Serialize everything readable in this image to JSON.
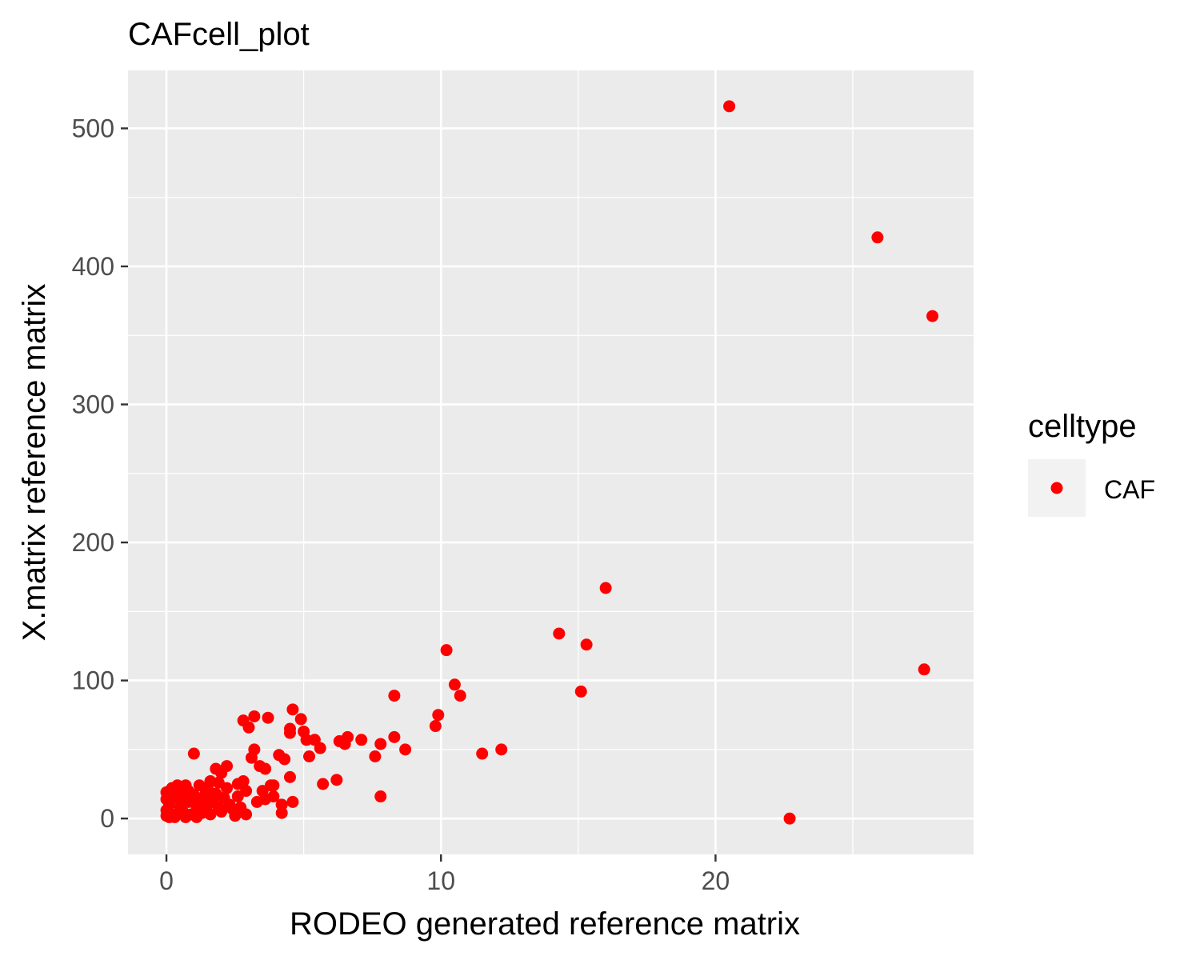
{
  "chart_data": {
    "type": "scatter",
    "title": "CAFcell_plot",
    "xlabel": "RODEO generated reference matrix",
    "ylabel": "X.matrix reference matrix",
    "xlim": [
      -1.4,
      29.4
    ],
    "ylim": [
      -26,
      542
    ],
    "x_ticks": [
      0,
      10,
      20
    ],
    "x_tick_labels": [
      "0",
      "10",
      "20"
    ],
    "y_ticks": [
      0,
      100,
      200,
      300,
      400,
      500
    ],
    "y_tick_labels": [
      "0",
      "100",
      "200",
      "300",
      "400",
      "500"
    ],
    "grid": true,
    "legend": {
      "title": "celltype",
      "position": "right",
      "entries": [
        "CAF"
      ]
    },
    "colors": {
      "panel": "#ebebeb",
      "grid": "#ffffff",
      "point": "#ff0000",
      "legend_key": "#f2f2f2"
    },
    "series": [
      {
        "name": "CAF",
        "color": "#ff0000",
        "points": [
          [
            20.5,
            516
          ],
          [
            25.9,
            421
          ],
          [
            27.9,
            364
          ],
          [
            16.0,
            167
          ],
          [
            14.3,
            134
          ],
          [
            15.3,
            126
          ],
          [
            15.1,
            92
          ],
          [
            27.6,
            108
          ],
          [
            22.7,
            0
          ],
          [
            10.2,
            122
          ],
          [
            10.5,
            97
          ],
          [
            10.7,
            89
          ],
          [
            9.9,
            75
          ],
          [
            9.8,
            67
          ],
          [
            8.3,
            89
          ],
          [
            8.3,
            59
          ],
          [
            8.7,
            50
          ],
          [
            7.8,
            54
          ],
          [
            7.6,
            45
          ],
          [
            7.8,
            16
          ],
          [
            11.5,
            47
          ],
          [
            12.2,
            50
          ],
          [
            7.1,
            57
          ],
          [
            6.6,
            59
          ],
          [
            6.5,
            54
          ],
          [
            6.3,
            56
          ],
          [
            6.2,
            28
          ],
          [
            5.7,
            25
          ],
          [
            5.6,
            51
          ],
          [
            5.4,
            57
          ],
          [
            5.2,
            45
          ],
          [
            5.0,
            63
          ],
          [
            5.1,
            57
          ],
          [
            4.9,
            72
          ],
          [
            4.6,
            79
          ],
          [
            4.5,
            65
          ],
          [
            4.5,
            62
          ],
          [
            4.5,
            30
          ],
          [
            4.6,
            12
          ],
          [
            4.3,
            43
          ],
          [
            4.2,
            10
          ],
          [
            4.2,
            4
          ],
          [
            4.1,
            46
          ],
          [
            3.9,
            24
          ],
          [
            3.8,
            24
          ],
          [
            3.7,
            73
          ],
          [
            3.6,
            36
          ],
          [
            3.4,
            38
          ],
          [
            3.6,
            14
          ],
          [
            3.2,
            74
          ],
          [
            3.2,
            50
          ],
          [
            3.1,
            44
          ],
          [
            3.0,
            66
          ],
          [
            2.8,
            71
          ],
          [
            2.8,
            27
          ],
          [
            2.9,
            20
          ],
          [
            2.6,
            25
          ],
          [
            2.5,
            2
          ],
          [
            2.9,
            3
          ],
          [
            2.2,
            38
          ],
          [
            2.0,
            33
          ],
          [
            1.8,
            36
          ],
          [
            1.6,
            27
          ],
          [
            1.0,
            47
          ],
          [
            1.2,
            24
          ],
          [
            0.7,
            24
          ],
          [
            0.4,
            24
          ],
          [
            0.3,
            15
          ],
          [
            0.5,
            8
          ],
          [
            0.8,
            12
          ],
          [
            1.1,
            9
          ],
          [
            1.4,
            17
          ],
          [
            1.5,
            22
          ],
          [
            1.7,
            12
          ],
          [
            1.9,
            8
          ],
          [
            2.1,
            15
          ],
          [
            2.3,
            10
          ],
          [
            2.6,
            16
          ],
          [
            1.3,
            4
          ],
          [
            0.9,
            3
          ],
          [
            0.6,
            5
          ],
          [
            0.2,
            3
          ],
          [
            0.1,
            10
          ],
          [
            0.0,
            6
          ],
          [
            0.0,
            2
          ],
          [
            0.0,
            14
          ],
          [
            0.0,
            19
          ],
          [
            0.1,
            1
          ],
          [
            0.3,
            1
          ],
          [
            0.4,
            19
          ],
          [
            0.6,
            14
          ],
          [
            0.8,
            20
          ],
          [
            1.0,
            17
          ],
          [
            1.2,
            13
          ],
          [
            1.4,
            6
          ],
          [
            1.6,
            3
          ],
          [
            1.8,
            18
          ],
          [
            2.0,
            5
          ],
          [
            2.2,
            22
          ],
          [
            2.4,
            7
          ],
          [
            1.5,
            10
          ],
          [
            1.1,
            1
          ],
          [
            0.7,
            1
          ],
          [
            0.5,
            18
          ],
          [
            0.2,
            22
          ],
          [
            1.9,
            26
          ],
          [
            2.7,
            8
          ],
          [
            3.3,
            12
          ],
          [
            3.5,
            20
          ],
          [
            3.9,
            16
          ]
        ]
      }
    ]
  }
}
